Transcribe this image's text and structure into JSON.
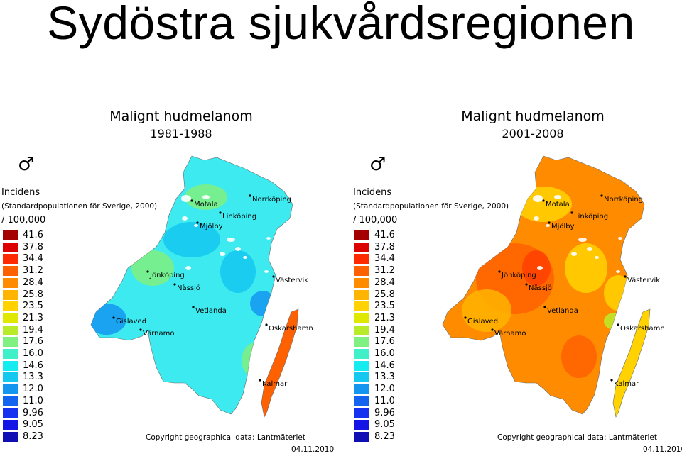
{
  "title": "Sydöstra sjukvårdsregionen",
  "legend": {
    "title": "Incidens",
    "subtitle": "(Standardpopulationen för Sverige, 2000)",
    "unit": "/ 100,000",
    "values": [
      "41.6",
      "37.8",
      "34.4",
      "31.2",
      "28.4",
      "25.8",
      "23.5",
      "21.3",
      "19.4",
      "17.6",
      "16.0",
      "14.6",
      "13.3",
      "12.0",
      "11.0",
      "9.96",
      "9.05",
      "8.23"
    ],
    "colors": [
      "#a50000",
      "#dc0000",
      "#ff2a00",
      "#ff6000",
      "#ff8c00",
      "#ffb400",
      "#ffd200",
      "#e1e800",
      "#b8ec2a",
      "#80f080",
      "#40f0c8",
      "#14ecf0",
      "#14c8f0",
      "#1496f0",
      "#1464f0",
      "#1432f0",
      "#1414e6",
      "#0f0fb4"
    ]
  },
  "maps": [
    {
      "title": "Malignt hudmelanom",
      "period": "1981-1988",
      "sex_symbol": "♂",
      "sex_icon": "male-symbol-icon",
      "palette": {
        "base": "#3ceaf0",
        "zone_a": "#14c8f0",
        "zone_b": "#80f080",
        "zone_c": "#1496f0",
        "coast": "#ff6000"
      },
      "copyright": "Copyright geographical data: Lantmäteriet",
      "date": "04.11.2010"
    },
    {
      "title": "Malignt hudmelanom",
      "period": "2001-2008",
      "sex_symbol": "♂",
      "sex_icon": "male-symbol-icon",
      "palette": {
        "base": "#ff8c00",
        "zone_a": "#ffb400",
        "zone_b": "#ffd200",
        "zone_c": "#ff6000",
        "coast": "#ffd200"
      },
      "copyright": "Copyright geographical data: Lantmäteriet",
      "date": "04.11.2010"
    }
  ],
  "places": [
    "Motala",
    "Norrköping",
    "Linköping",
    "Mjölby",
    "Jönköping",
    "Nässjö",
    "Västervik",
    "Vetlanda",
    "Gislaved",
    "Värnamo",
    "Oskarshamn",
    "Kalmar"
  ]
}
